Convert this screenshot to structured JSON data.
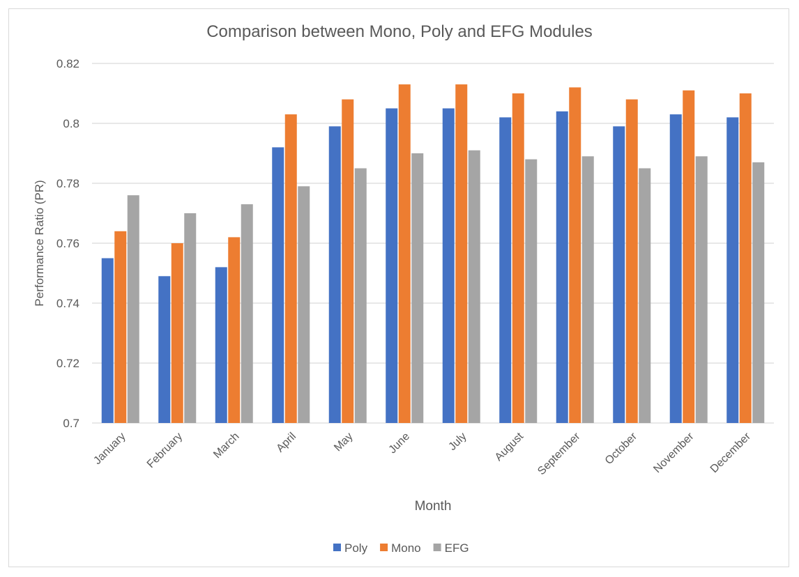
{
  "chart_data": {
    "type": "bar",
    "title": "Comparison between Mono, Poly and EFG Modules",
    "xlabel": "Month",
    "ylabel": "Performance Ratio (PR)",
    "ylim": [
      0.7,
      0.82
    ],
    "yticks": [
      0.7,
      0.72,
      0.74,
      0.76,
      0.78,
      0.8,
      0.82
    ],
    "ytick_labels": [
      "0.7",
      "0.72",
      "0.74",
      "0.76",
      "0.78",
      "0.8",
      "0.82"
    ],
    "grid": true,
    "legend_position": "bottom",
    "categories": [
      "January",
      "February",
      "March",
      "April",
      "May",
      "June",
      "July",
      "August",
      "September",
      "October",
      "November",
      "December"
    ],
    "series": [
      {
        "name": "Poly",
        "color": "#4472c4",
        "values": [
          0.755,
          0.749,
          0.752,
          0.792,
          0.799,
          0.805,
          0.805,
          0.802,
          0.804,
          0.799,
          0.803,
          0.802
        ]
      },
      {
        "name": "Mono",
        "color": "#ed7d31",
        "values": [
          0.764,
          0.76,
          0.762,
          0.803,
          0.808,
          0.813,
          0.813,
          0.81,
          0.812,
          0.808,
          0.811,
          0.81
        ]
      },
      {
        "name": "EFG",
        "color": "#a5a5a5",
        "values": [
          0.776,
          0.77,
          0.773,
          0.779,
          0.785,
          0.79,
          0.791,
          0.788,
          0.789,
          0.785,
          0.789,
          0.787
        ]
      }
    ]
  }
}
